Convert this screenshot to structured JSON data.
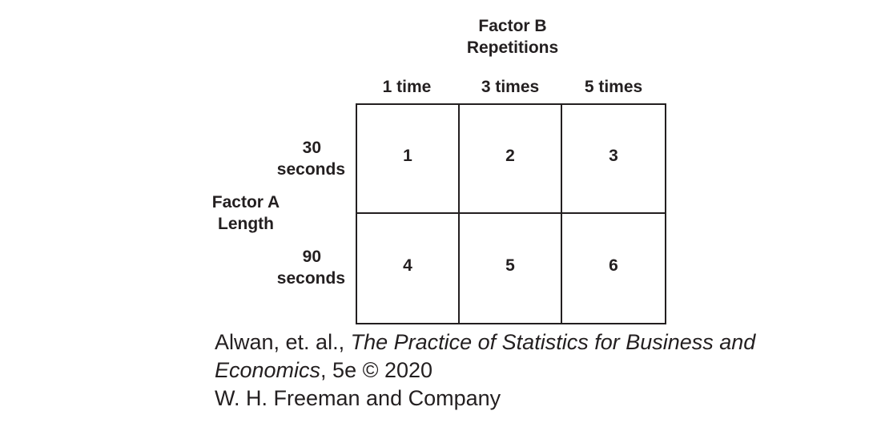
{
  "factor_b": {
    "name": "Factor B",
    "label": "Repetitions",
    "levels": [
      "1 time",
      "3 times",
      "5 times"
    ]
  },
  "factor_a": {
    "name": "Factor A",
    "label": "Length",
    "levels": [
      {
        "line1": "30",
        "line2": "seconds"
      },
      {
        "line1": "90",
        "line2": "seconds"
      }
    ]
  },
  "cells": [
    [
      "1",
      "2",
      "3"
    ],
    [
      "4",
      "5",
      "6"
    ]
  ],
  "caption": {
    "authors": "Alwan, et. al., ",
    "book_title": "The Practice of Statistics for Business and Economics",
    "edition": ", 5e © 2020",
    "publisher": "W. H. Freeman and Company"
  }
}
